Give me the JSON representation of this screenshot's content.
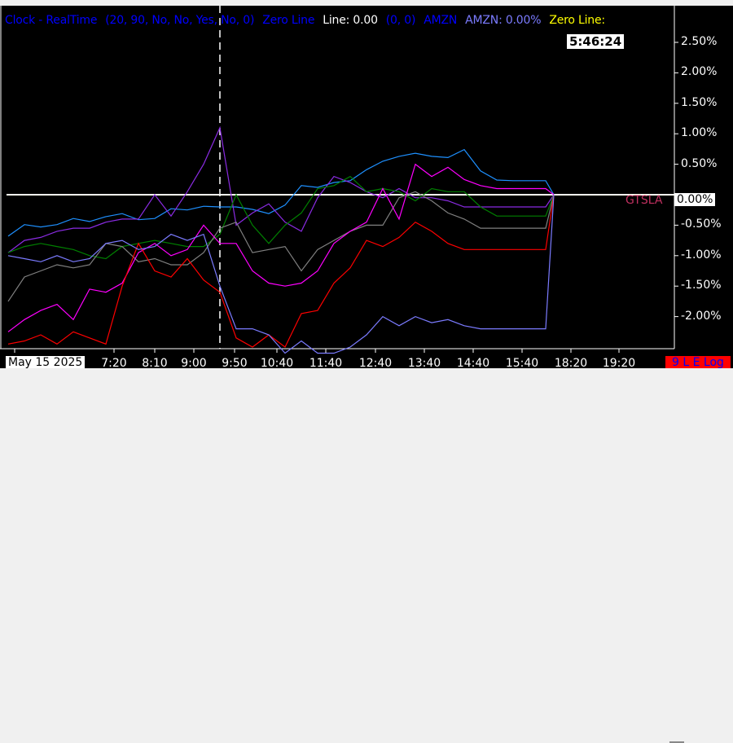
{
  "legend": {
    "items": [
      {
        "text": "Clock - RealTime",
        "color": "#0000ff"
      },
      {
        "text": "(20, 90, No, No, Yes, No, 0)",
        "color": "#0000ff"
      },
      {
        "text": "Zero Line",
        "color": "#0000ff"
      },
      {
        "text": "Line: 0.00",
        "color": "#ffffff"
      },
      {
        "text": "(0, 0)",
        "color": "#0000ff"
      },
      {
        "text": "AMZN",
        "color": "#0000ff"
      },
      {
        "text": "AMZN: 0.00%",
        "color": "#7b7bff"
      },
      {
        "text": "Zero Line:",
        "color": "#ffff00"
      }
    ]
  },
  "clock": "5:46:24",
  "date_label": "May 15 2025",
  "scale_badge": "9 L E Log",
  "zero_label": {
    "symbol": "GTSLA",
    "value": "0.00%"
  },
  "chart_data": {
    "type": "line",
    "title": "",
    "ylim": [
      -2.5,
      2.7
    ],
    "y_ticks": [
      "2.50%",
      "2.00%",
      "1.50%",
      "1.00%",
      "0.50%",
      "0.00%",
      "-0.50%",
      "-1.00%",
      "-1.50%",
      "-2.00%"
    ],
    "y_tick_values": [
      2.5,
      2.0,
      1.5,
      1.0,
      0.5,
      0.0,
      -0.5,
      -1.0,
      -1.5,
      -2.0
    ],
    "x_ticks": [
      "7:20",
      "8:10",
      "9:00",
      "9:50",
      "10:40",
      "11:40",
      "12:40",
      "13:40",
      "14:40",
      "15:40",
      "18:20",
      "19:20"
    ],
    "zero_line": 0.0,
    "crosshair_time": "9:35",
    "series": [
      {
        "color": "#1e90ff",
        "values": [
          -0.68,
          -0.49,
          -0.53,
          -0.49,
          -0.39,
          -0.44,
          -0.36,
          -0.31,
          -0.41,
          -0.39,
          -0.23,
          -0.25,
          -0.19,
          -0.2,
          -0.2,
          -0.24,
          -0.31,
          -0.17,
          0.15,
          0.12,
          0.2,
          0.23,
          0.41,
          0.55,
          0.63,
          0.68,
          0.63,
          0.61,
          0.74,
          0.39,
          0.24,
          0.23,
          0.23,
          0.23,
          0.0
        ]
      },
      {
        "color": "#8a2be2",
        "values": [
          -0.95,
          -0.75,
          -0.7,
          -0.6,
          -0.55,
          -0.55,
          -0.45,
          -0.4,
          -0.4,
          0.0,
          -0.35,
          0.05,
          0.5,
          1.1,
          -0.5,
          -0.3,
          -0.15,
          -0.45,
          -0.6,
          -0.05,
          0.3,
          0.2,
          0.05,
          -0.05,
          0.1,
          -0.05,
          -0.05,
          -0.1,
          -0.2,
          -0.2,
          -0.2,
          -0.2,
          -0.2,
          -0.2,
          0.0
        ]
      },
      {
        "color": "#008000",
        "values": [
          -0.95,
          -0.85,
          -0.8,
          -0.85,
          -0.9,
          -1.0,
          -1.05,
          -0.85,
          -0.8,
          -0.75,
          -0.8,
          -0.85,
          -0.85,
          -0.65,
          0.0,
          -0.5,
          -0.8,
          -0.5,
          -0.3,
          0.1,
          0.15,
          0.3,
          0.05,
          0.1,
          0.05,
          -0.1,
          0.1,
          0.05,
          0.05,
          -0.2,
          -0.35,
          -0.35,
          -0.35,
          -0.35,
          0.0
        ]
      },
      {
        "color": "#808080",
        "values": [
          -1.75,
          -1.35,
          -1.25,
          -1.15,
          -1.2,
          -1.15,
          -0.8,
          -0.85,
          -1.1,
          -1.05,
          -1.15,
          -1.15,
          -0.95,
          -0.55,
          -0.45,
          -0.95,
          -0.9,
          -0.85,
          -1.25,
          -0.9,
          -0.75,
          -0.6,
          -0.5,
          -0.5,
          -0.05,
          0.05,
          -0.1,
          -0.3,
          -0.4,
          -0.55,
          -0.55,
          -0.55,
          -0.55,
          -0.55,
          0.0
        ]
      },
      {
        "color": "#ff00ff",
        "values": [
          -2.25,
          -2.05,
          -1.9,
          -1.8,
          -2.05,
          -1.55,
          -1.6,
          -1.45,
          -0.95,
          -0.8,
          -1.0,
          -0.9,
          -0.5,
          -0.8,
          -0.8,
          -1.25,
          -1.45,
          -1.5,
          -1.45,
          -1.25,
          -0.8,
          -0.6,
          -0.45,
          0.1,
          -0.4,
          0.5,
          0.3,
          0.45,
          0.25,
          0.15,
          0.1,
          0.1,
          0.1,
          0.1,
          0.0
        ]
      },
      {
        "color": "#ff0000",
        "values": [
          -2.45,
          -2.4,
          -2.3,
          -2.45,
          -2.25,
          -2.35,
          -2.45,
          -1.5,
          -0.8,
          -1.25,
          -1.35,
          -1.05,
          -1.4,
          -1.6,
          -2.35,
          -2.5,
          -2.3,
          -2.5,
          -1.95,
          -1.9,
          -1.45,
          -1.2,
          -0.75,
          -0.85,
          -0.7,
          -0.45,
          -0.6,
          -0.8,
          -0.9,
          -0.9,
          -0.9,
          -0.9,
          -0.9,
          -0.9,
          0.0
        ]
      },
      {
        "color": "#7b7bff",
        "values": [
          -1.0,
          -1.05,
          -1.1,
          -1.0,
          -1.1,
          -1.05,
          -0.8,
          -0.75,
          -0.9,
          -0.85,
          -0.65,
          -0.75,
          -0.65,
          -1.5,
          -2.2,
          -2.2,
          -2.3,
          -2.6,
          -2.4,
          -2.6,
          -2.6,
          -2.5,
          -2.3,
          -2.0,
          -2.15,
          -2.0,
          -2.1,
          -2.05,
          -2.15,
          -2.2,
          -2.2,
          -2.2,
          -2.2,
          -2.2,
          0.0
        ]
      }
    ]
  }
}
